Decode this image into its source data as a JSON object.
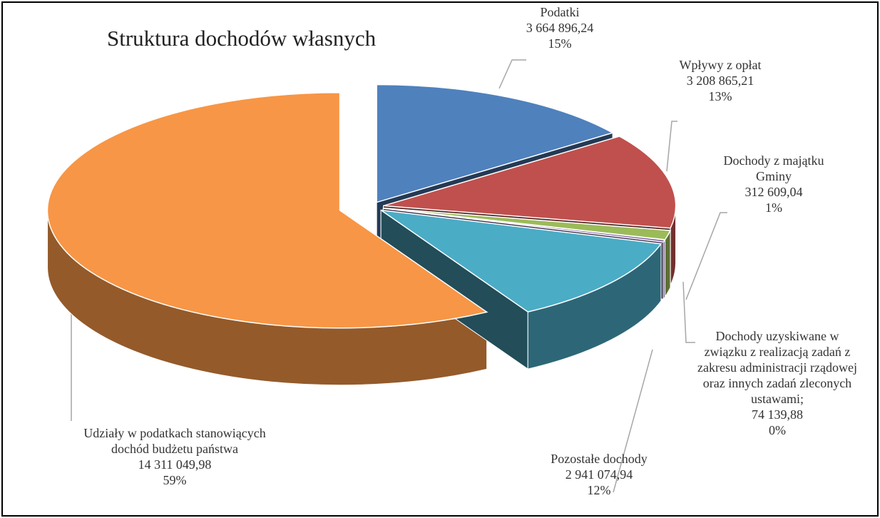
{
  "chart_data": {
    "type": "pie3d",
    "title": "Struktura dochodów własnych",
    "categories": [
      "Podatki",
      "Wpływy z opłat",
      "Dochody z majątku Gminy",
      "Dochody uzyskiwane w związku z realizacją zadań z zakresu administracji rządowej oraz innych zadań zleconych ustawami;",
      "Pozostałe dochody",
      "Udziały w podatkach stanowiących dochód budżetu państwa"
    ],
    "values": [
      3664896.24,
      3208865.21,
      312609.04,
      74139.88,
      2941074.94,
      14311049.98
    ],
    "value_labels": [
      "3 664 896,24",
      "3 208 865,21",
      "312 609,04",
      "74 139,88",
      "2 941 074,94",
      "14 311 049,98"
    ],
    "percent_labels": [
      "15%",
      "13%",
      "1%",
      "0%",
      "12%",
      "59%"
    ],
    "colors": [
      "#4f81bd",
      "#c0504d",
      "#9bbb59",
      "#8064a2",
      "#4bacc6",
      "#f79646"
    ]
  }
}
